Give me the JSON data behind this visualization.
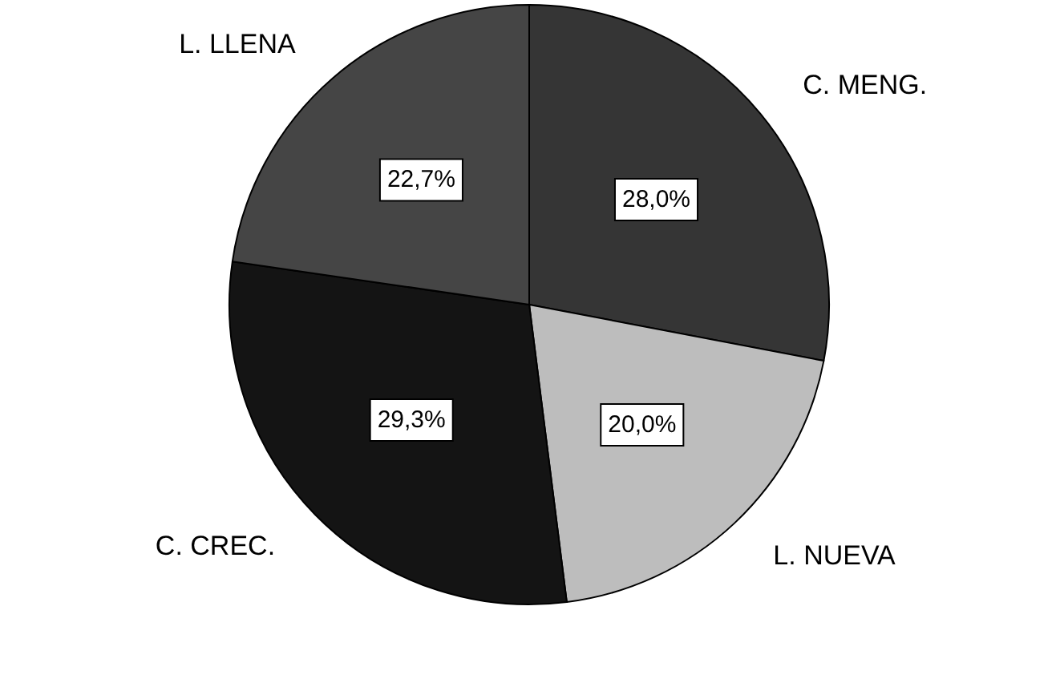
{
  "chart_data": {
    "type": "pie",
    "categories": [
      "C. MENG.",
      "L. NUEVA",
      "C. CREC.",
      "L. LLENA"
    ],
    "values": [
      28.0,
      20.0,
      29.3,
      22.7
    ],
    "colors": [
      "#353535",
      "#bdbdbd",
      "#141414",
      "#454545"
    ],
    "value_labels": [
      "28,0%",
      "20,0%",
      "29,3%",
      "22,7%"
    ],
    "legend": false
  }
}
